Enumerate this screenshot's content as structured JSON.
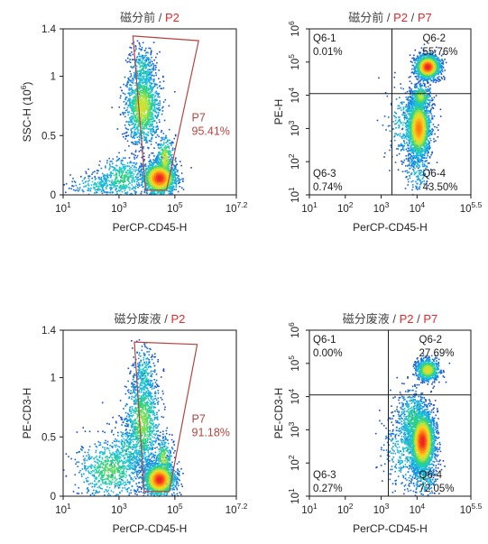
{
  "colors": {
    "gate_title_accent": "#e8262a",
    "gate_line": "#b5443f",
    "quadrant_line": "#1a1a1a",
    "density_ramp": [
      "#1e3fbf",
      "#0f8fe6",
      "#1ec7d6",
      "#2fd27a",
      "#b8e63a",
      "#ffd21f",
      "#ff8a12",
      "#f0202a"
    ]
  },
  "chart_data": [
    {
      "id": "p1",
      "type": "scatter",
      "title_prefix": "磁分前",
      "title_gates": [
        "P2"
      ],
      "title_sep": "/",
      "xlabel": "PerCP-CD45-H",
      "ylabel": "SSC-H (10",
      "ylabel_sup": "6",
      "ylabel_suffix": ")",
      "x_scale": "log",
      "xlim": [
        1,
        7.2
      ],
      "xticks": [
        {
          "pos": 1,
          "base": "10",
          "exp": "1"
        },
        {
          "pos": 3,
          "base": "10",
          "exp": "3"
        },
        {
          "pos": 5,
          "base": "10",
          "exp": "5"
        },
        {
          "pos": 7.2,
          "base": "10",
          "exp": "7.2"
        }
      ],
      "y_scale": "linear",
      "ylim": [
        0,
        1.4
      ],
      "yticks": [
        {
          "pos": 0,
          "label": "0"
        },
        {
          "pos": 0.5,
          "label": "0.5"
        },
        {
          "pos": 1,
          "label": "1"
        },
        {
          "pos": 1.4,
          "label": "1.4"
        }
      ],
      "gate": {
        "name": "P7",
        "percent": "95.41%",
        "polygon": [
          [
            3.5,
            1.34
          ],
          [
            5.85,
            1.3
          ],
          [
            4.7,
            0.04
          ],
          [
            3.95,
            0.04
          ]
        ]
      },
      "clusters": [
        {
          "cx": 3.85,
          "cy": 0.74,
          "sx": 0.3,
          "sy": 0.16,
          "n": 1300,
          "peak": 0.55
        },
        {
          "cx": 3.85,
          "cy": 1.05,
          "sx": 0.22,
          "sy": 0.1,
          "n": 250,
          "peak": 0.3
        },
        {
          "cx": 4.45,
          "cy": 0.14,
          "sx": 0.3,
          "sy": 0.07,
          "n": 1500,
          "peak": 1.0
        },
        {
          "cx": 4.65,
          "cy": 0.3,
          "sx": 0.15,
          "sy": 0.1,
          "n": 320,
          "peak": 0.55
        },
        {
          "cx": 3.1,
          "cy": 0.14,
          "sx": 0.45,
          "sy": 0.09,
          "n": 450,
          "peak": 0.35
        },
        {
          "cx": 2.2,
          "cy": 0.08,
          "sx": 0.45,
          "sy": 0.05,
          "n": 150,
          "peak": 0.25
        }
      ]
    },
    {
      "id": "p2",
      "type": "scatter",
      "title_prefix": "磁分前",
      "title_gates": [
        "P2",
        "P7"
      ],
      "title_sep": "/",
      "xlabel": "PerCP-CD45-H",
      "ylabel": "PE-H",
      "x_scale": "log",
      "xlim": [
        1,
        5.5
      ],
      "xticks": [
        {
          "pos": 1,
          "base": "10",
          "exp": "1"
        },
        {
          "pos": 2,
          "base": "10",
          "exp": "2"
        },
        {
          "pos": 3,
          "base": "10",
          "exp": "3"
        },
        {
          "pos": 4,
          "base": "10",
          "exp": "4"
        },
        {
          "pos": 5.5,
          "base": "10",
          "exp": "5.5"
        }
      ],
      "y_scale": "log",
      "ylim": [
        1,
        6
      ],
      "yticks": [
        {
          "pos": 1,
          "base": "10",
          "exp": "1"
        },
        {
          "pos": 2,
          "base": "10",
          "exp": "2"
        },
        {
          "pos": 3,
          "base": "10",
          "exp": "3"
        },
        {
          "pos": 4,
          "base": "10",
          "exp": "4"
        },
        {
          "pos": 5,
          "base": "10",
          "exp": "5"
        },
        {
          "pos": 6,
          "base": "10",
          "exp": "6"
        }
      ],
      "quadrant_lines": {
        "x": 3.3,
        "y": 4.05
      },
      "quadrants": [
        {
          "name": "Q6-1",
          "percent": "0.01%",
          "corner": "top-left"
        },
        {
          "name": "Q6-2",
          "percent": "55.76%",
          "corner": "top-right"
        },
        {
          "name": "Q6-3",
          "percent": "0.74%",
          "corner": "bottom-left"
        },
        {
          "name": "Q6-4",
          "percent": "43.50%",
          "corner": "bottom-right"
        }
      ],
      "clusters": [
        {
          "cx": 4.3,
          "cy": 4.85,
          "sx": 0.17,
          "sy": 0.18,
          "n": 1400,
          "peak": 1.0
        },
        {
          "cx": 4.05,
          "cy": 3.0,
          "sx": 0.16,
          "sy": 0.45,
          "n": 1700,
          "peak": 0.85
        },
        {
          "cx": 4.1,
          "cy": 3.95,
          "sx": 0.14,
          "sy": 0.18,
          "n": 350,
          "peak": 0.5
        },
        {
          "cx": 3.75,
          "cy": 3.15,
          "sx": 0.3,
          "sy": 0.55,
          "n": 350,
          "peak": 0.25
        },
        {
          "cx": 4.0,
          "cy": 1.75,
          "sx": 0.18,
          "sy": 0.35,
          "n": 150,
          "peak": 0.2
        }
      ]
    },
    {
      "id": "p3",
      "type": "scatter",
      "title_prefix": "磁分废液",
      "title_gates": [
        "P2"
      ],
      "title_sep": "/",
      "xlabel": "PerCP-CD45-H",
      "ylabel": "PE-CD3-H",
      "x_scale": "log",
      "xlim": [
        1,
        7.2
      ],
      "xticks": [
        {
          "pos": 1,
          "base": "10",
          "exp": "1"
        },
        {
          "pos": 3,
          "base": "10",
          "exp": "3"
        },
        {
          "pos": 5,
          "base": "10",
          "exp": "5"
        },
        {
          "pos": 7.2,
          "base": "10",
          "exp": "7.2"
        }
      ],
      "y_scale": "linear",
      "ylim": [
        0,
        1.4
      ],
      "yticks": [
        {
          "pos": 0,
          "label": "0"
        },
        {
          "pos": 0.5,
          "label": "0.5"
        },
        {
          "pos": 1,
          "label": "1"
        },
        {
          "pos": 1.4,
          "label": "1.4"
        }
      ],
      "gate": {
        "name": "P7",
        "percent": "91.18%",
        "polygon": [
          [
            3.55,
            1.3
          ],
          [
            5.8,
            1.28
          ],
          [
            4.8,
            0.04
          ],
          [
            3.9,
            0.04
          ]
        ]
      },
      "clusters": [
        {
          "cx": 3.85,
          "cy": 0.62,
          "sx": 0.3,
          "sy": 0.22,
          "n": 1100,
          "peak": 0.45
        },
        {
          "cx": 3.9,
          "cy": 1.02,
          "sx": 0.2,
          "sy": 0.13,
          "n": 220,
          "peak": 0.28
        },
        {
          "cx": 4.45,
          "cy": 0.14,
          "sx": 0.28,
          "sy": 0.07,
          "n": 1500,
          "peak": 1.0
        },
        {
          "cx": 4.6,
          "cy": 0.3,
          "sx": 0.15,
          "sy": 0.1,
          "n": 280,
          "peak": 0.5
        },
        {
          "cx": 2.7,
          "cy": 0.22,
          "sx": 0.6,
          "sy": 0.13,
          "n": 700,
          "peak": 0.4
        },
        {
          "cx": 3.3,
          "cy": 0.38,
          "sx": 0.35,
          "sy": 0.12,
          "n": 250,
          "peak": 0.3
        }
      ]
    },
    {
      "id": "p4",
      "type": "scatter",
      "title_prefix": "磁分废液",
      "title_gates": [
        "P2",
        "P7"
      ],
      "title_sep": "/",
      "xlabel": "PerCP-CD45-H",
      "ylabel": "PE-CD3-H",
      "x_scale": "log",
      "xlim": [
        1,
        5.5
      ],
      "xticks": [
        {
          "pos": 1,
          "base": "10",
          "exp": "1"
        },
        {
          "pos": 2,
          "base": "10",
          "exp": "2"
        },
        {
          "pos": 3,
          "base": "10",
          "exp": "3"
        },
        {
          "pos": 4,
          "base": "10",
          "exp": "4"
        },
        {
          "pos": 5.5,
          "base": "10",
          "exp": "5.5"
        }
      ],
      "y_scale": "log",
      "ylim": [
        1,
        6
      ],
      "yticks": [
        {
          "pos": 1,
          "base": "10",
          "exp": "1"
        },
        {
          "pos": 2,
          "base": "10",
          "exp": "2"
        },
        {
          "pos": 3,
          "base": "10",
          "exp": "3"
        },
        {
          "pos": 4,
          "base": "10",
          "exp": "4"
        },
        {
          "pos": 5,
          "base": "10",
          "exp": "5"
        },
        {
          "pos": 6,
          "base": "10",
          "exp": "6"
        }
      ],
      "quadrant_lines": {
        "x": 3.2,
        "y": 4.05
      },
      "quadrants": [
        {
          "name": "Q6-1",
          "percent": "0.00%",
          "corner": "top-left"
        },
        {
          "name": "Q6-2",
          "percent": "27.69%",
          "corner": "top-right"
        },
        {
          "name": "Q6-3",
          "percent": "0.27%",
          "corner": "bottom-left"
        },
        {
          "name": "Q6-4",
          "percent": "72.05%",
          "corner": "bottom-right"
        }
      ],
      "clusters": [
        {
          "cx": 4.3,
          "cy": 4.8,
          "sx": 0.16,
          "sy": 0.16,
          "n": 700,
          "peak": 0.6
        },
        {
          "cx": 4.15,
          "cy": 2.65,
          "sx": 0.17,
          "sy": 0.45,
          "n": 2300,
          "peak": 1.0
        },
        {
          "cx": 3.9,
          "cy": 3.3,
          "sx": 0.22,
          "sy": 0.45,
          "n": 500,
          "peak": 0.35
        },
        {
          "cx": 3.75,
          "cy": 2.4,
          "sx": 0.35,
          "sy": 0.6,
          "n": 450,
          "peak": 0.25
        },
        {
          "cx": 4.2,
          "cy": 1.55,
          "sx": 0.18,
          "sy": 0.3,
          "n": 180,
          "peak": 0.25
        }
      ]
    }
  ]
}
